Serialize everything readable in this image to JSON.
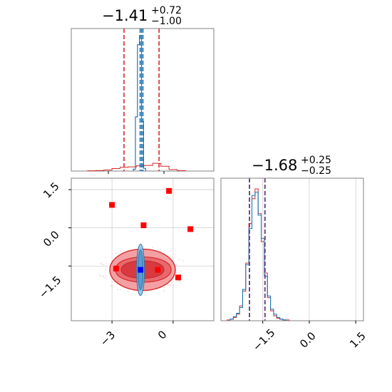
{
  "chart_data": [
    {
      "type": "histogram",
      "panel": "top-left",
      "title": {
        "main": "−1.41",
        "sup": "+0.72",
        "sub": "−1.00"
      },
      "xlim": [
        -5.0,
        2.0
      ],
      "red_hist": {
        "x": [
          -4.0,
          -3.6,
          -3.2,
          -2.8,
          -2.4,
          -2.0,
          -1.6,
          -1.2,
          -0.8,
          -0.4,
          0.0,
          0.4
        ],
        "counts": [
          0.3,
          0.6,
          1.2,
          2.8,
          4.2,
          4.6,
          5.8,
          6.2,
          8.6,
          5.3,
          1.7,
          0.5
        ]
      },
      "blue_hist": {
        "x": [
          -1.9,
          -1.8,
          -1.7,
          -1.6,
          -1.5,
          -1.4
        ],
        "counts": [
          2,
          60,
          140,
          150,
          55,
          3
        ]
      },
      "red_quantiles": [
        -2.41,
        -1.41,
        -0.69
      ],
      "blue_quantiles": [
        -1.62,
        -1.55,
        -1.48
      ],
      "colors": {
        "red": "#d62728",
        "blue": "#1f77b4"
      }
    },
    {
      "type": "scatter",
      "panel": "bottom-left",
      "xlim": [
        -5.0,
        2.0
      ],
      "ylim": [
        -3.65,
        1.95
      ],
      "xticks": [
        -3,
        0
      ],
      "yticks": [
        1.5,
        0.0,
        -1.5
      ],
      "red_markers": [
        {
          "x": -3.0,
          "y": 0.9
        },
        {
          "x": -0.2,
          "y": 1.45
        },
        {
          "x": -1.45,
          "y": 0.1
        },
        {
          "x": 0.85,
          "y": -0.05
        },
        {
          "x": -2.8,
          "y": -1.6
        },
        {
          "x": -0.75,
          "y": -1.65
        },
        {
          "x": 0.25,
          "y": -1.95
        }
      ],
      "blue_marker": {
        "x": -1.6,
        "y": -1.65
      },
      "red_contour_center": {
        "x": -1.5,
        "y": -1.65
      },
      "colors": {
        "red": "#d62728",
        "blue": "#1f77b4",
        "marker_blue": "#0000ff",
        "marker_red": "#ff0000"
      }
    },
    {
      "type": "histogram",
      "panel": "bottom-right",
      "title": {
        "main": "−1.68",
        "sup": "+0.25",
        "sub": "−0.25"
      },
      "xlim": [
        -2.85,
        1.75
      ],
      "xticks": [
        -1.5,
        0.0,
        1.5
      ],
      "x": [
        -2.6,
        -2.5,
        -2.4,
        -2.3,
        -2.2,
        -2.1,
        -2.0,
        -1.9,
        -1.8,
        -1.7,
        -1.6,
        -1.5,
        -1.4,
        -1.3,
        -1.2,
        -1.1,
        -1.0,
        -0.9,
        -0.8,
        -0.7,
        -0.6
      ],
      "red_counts": [
        1,
        2,
        4,
        8,
        18,
        36,
        70,
        118,
        148,
        160,
        130,
        96,
        58,
        28,
        12,
        6,
        3,
        2,
        1,
        1,
        0
      ],
      "blue_counts": [
        0,
        2,
        5,
        9,
        16,
        38,
        68,
        112,
        152,
        156,
        128,
        100,
        54,
        30,
        14,
        8,
        4,
        2,
        1,
        0,
        0
      ],
      "quantiles": [
        -1.93,
        -1.68,
        -1.43
      ],
      "colors": {
        "red": "#d62728",
        "blue": "#1f77b4",
        "quantile_blend": "#6f4a8a"
      }
    }
  ],
  "labels": {
    "top_title_main": "−1.41",
    "top_title_sup": "+0.72",
    "top_title_sub": "−1.00",
    "right_title_main": "−1.68",
    "right_title_sup": "+0.25",
    "right_title_sub": "−0.25",
    "y_tick_1": "1.5",
    "y_tick_2": "0.0",
    "y_tick_3": "−1.5",
    "x_tick_1": "−3",
    "x_tick_2": "0",
    "rx_tick_1": "−1.5",
    "rx_tick_2": "0.0",
    "rx_tick_3": "1.5"
  }
}
